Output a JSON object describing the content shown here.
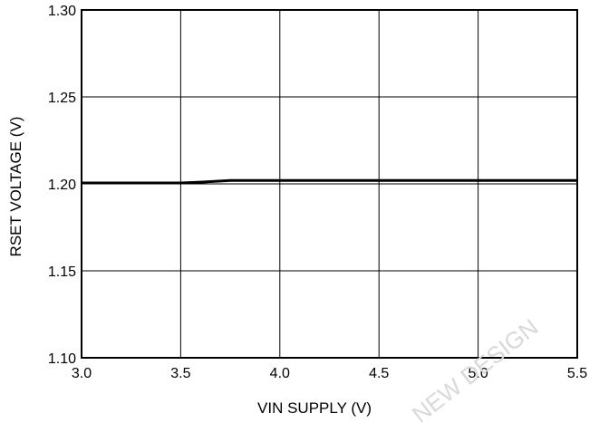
{
  "chart_data": {
    "type": "line",
    "title": "",
    "xlabel": "VIN SUPPLY (V)",
    "ylabel": "RSET VOLTAGE (V)",
    "xlim": [
      3.0,
      5.5
    ],
    "ylim": [
      1.1,
      1.3
    ],
    "x_ticks": [
      "3.0",
      "3.5",
      "4.0",
      "4.5",
      "5.0",
      "5.5"
    ],
    "y_ticks": [
      "1.30",
      "1.25",
      "1.20",
      "1.15",
      "1.10"
    ],
    "grid": true,
    "legend": "none",
    "line_color": "#000000",
    "series": [
      {
        "x": [
          3.0,
          3.5,
          3.6,
          3.75,
          4.0,
          4.5,
          5.0,
          5.5
        ],
        "values": [
          1.2005,
          1.2005,
          1.201,
          1.202,
          1.202,
          1.202,
          1.202,
          1.202
        ]
      }
    ]
  },
  "watermark": "NEW DESIGN"
}
